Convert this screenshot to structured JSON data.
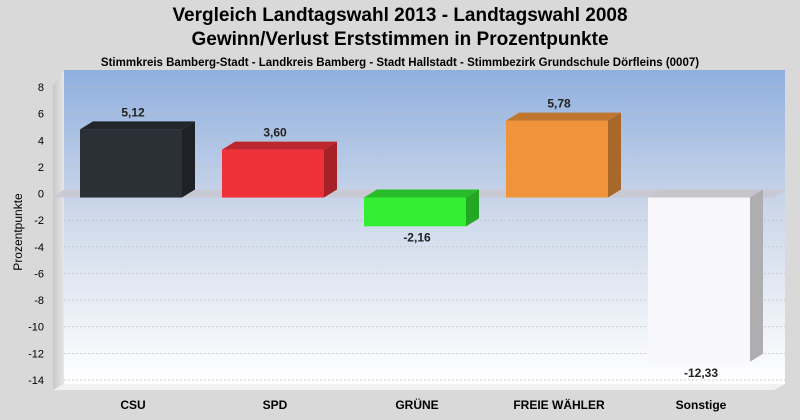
{
  "title_line1": "Vergleich Landtagswahl 2013 - Landtagswahl 2008",
  "title_line2": "Gewinn/Verlust Erststimmen in Prozentpunkte",
  "subtitle": "Stimmkreis Bamberg-Stadt - Landkreis Bamberg - Stadt Hallstadt - Stimmbezirk Grundschule Dörfleins (0007)",
  "chart_data": {
    "type": "bar",
    "title": "Vergleich Landtagswahl 2013 - Landtagswahl 2008 / Gewinn/Verlust Erststimmen in Prozentpunkte",
    "xlabel": "",
    "ylabel": "Prozentpunkte",
    "categories": [
      "CSU",
      "SPD",
      "GRÜNE",
      "FREIE WÄHLER",
      "Sonstige"
    ],
    "values": [
      5.12,
      3.6,
      -2.16,
      5.78,
      -12.33
    ],
    "value_labels": [
      "5,12",
      "3,60",
      "-2,16",
      "5,78",
      "-12,33"
    ],
    "colors": [
      "#2b2f36",
      "#ee3038",
      "#33ee33",
      "#ef943a",
      "#f8f8fc"
    ],
    "ylim": [
      -14,
      8
    ],
    "yticks": [
      8,
      6,
      4,
      2,
      0,
      -2,
      -4,
      -6,
      -8,
      -10,
      -12,
      -14
    ],
    "grid": true
  }
}
